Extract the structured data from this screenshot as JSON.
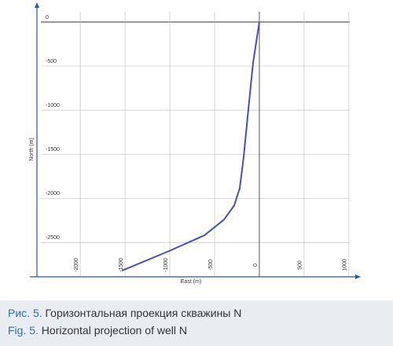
{
  "chart_data": {
    "type": "line",
    "x_label": "East (m)",
    "y_label": "North (m)",
    "series": [
      {
        "color": "#4651b5",
        "x": [
          0,
          -70,
          -123,
          -175,
          -219,
          -281,
          -395,
          -614,
          -1009,
          -1535
        ],
        "values": [
          0,
          -463,
          -996,
          -1530,
          -1886,
          -2082,
          -2242,
          -2420,
          -2598,
          -2820
        ]
      }
    ],
    "xlim": [
      -2440,
      1010
    ],
    "ylim": [
      -2890,
      160
    ],
    "xticks": [
      -2000,
      -1500,
      -1000,
      -500,
      0,
      500,
      1000
    ],
    "yticks": [
      0,
      -500,
      -1000,
      -1500,
      -2000,
      -2500
    ],
    "grid": true
  },
  "caption": {
    "ru_label": "Рис. 5.",
    "ru_text": "Горизонтальная проекция скважины N",
    "en_label": "Fig. 5.",
    "en_text": "Horizontal projection of well N"
  }
}
